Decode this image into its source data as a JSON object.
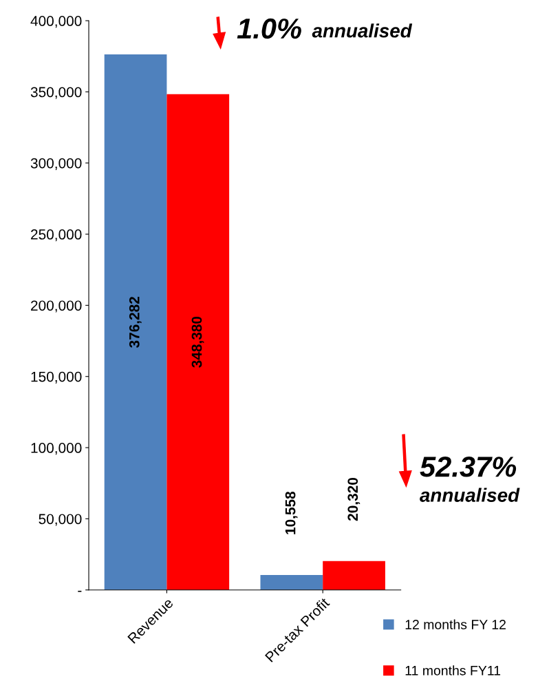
{
  "chart_data": {
    "type": "bar",
    "categories": [
      "Revenue",
      "Pre-tax Profit"
    ],
    "series": [
      {
        "name": "12 months FY 12",
        "color": "#4f81bd",
        "values": [
          376282,
          10558
        ],
        "value_labels": [
          "376,282",
          "10,558"
        ]
      },
      {
        "name": "11 months FY11",
        "color": "#ff0000",
        "values": [
          348380,
          20320
        ],
        "value_labels": [
          "348,380",
          "20,320"
        ]
      }
    ],
    "ylim": [
      0,
      400000
    ],
    "yticks": [
      {
        "value": 0,
        "label": "-"
      },
      {
        "value": 50000,
        "label": "50,000"
      },
      {
        "value": 100000,
        "label": "100,000"
      },
      {
        "value": 150000,
        "label": "150,000"
      },
      {
        "value": 200000,
        "label": "200,000"
      },
      {
        "value": 250000,
        "label": "250,000"
      },
      {
        "value": 300000,
        "label": "300,000"
      },
      {
        "value": 350000,
        "label": "350,000"
      },
      {
        "value": 400000,
        "label": "400,000"
      }
    ],
    "annotations": [
      "1.0% annualised",
      "52.37% annualised"
    ],
    "grid": false,
    "legend": "bottom right"
  }
}
